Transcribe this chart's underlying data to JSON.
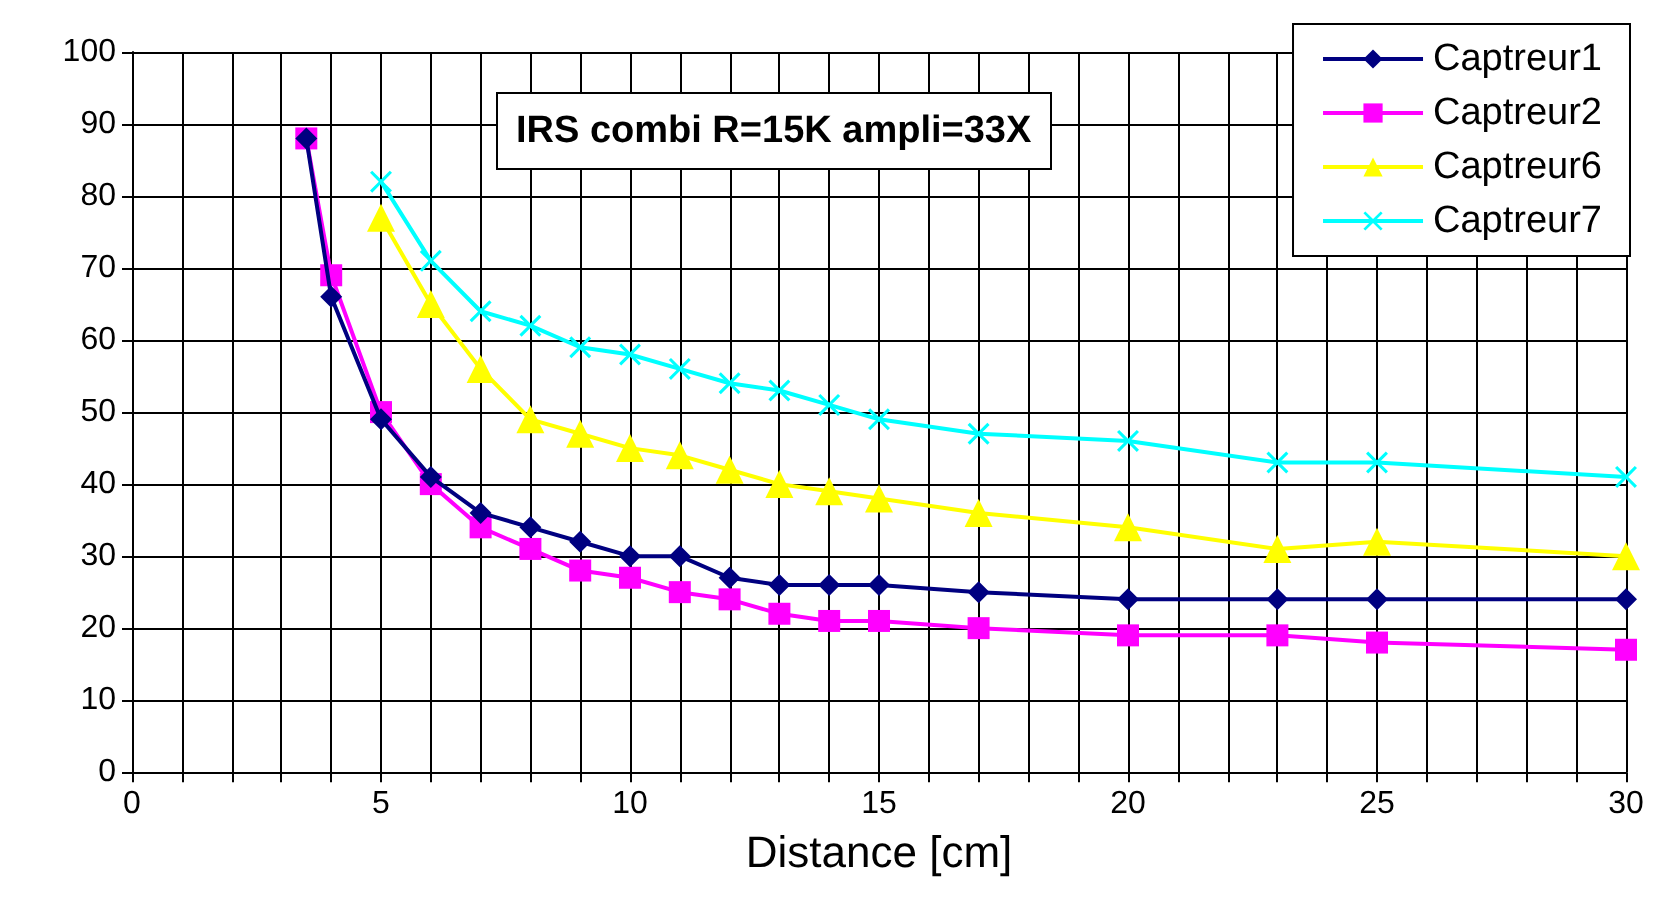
{
  "chart_data": {
    "type": "line",
    "title": "IRS combi R=15K ampli=33X",
    "xlabel": "Distance [cm]",
    "xlim": [
      0,
      30
    ],
    "ylim": [
      0,
      100
    ],
    "xticks": [
      0,
      {
        "value": 1,
        "label": null
      },
      {
        "value": 2,
        "label": null
      },
      {
        "value": 3,
        "label": null
      },
      {
        "value": 4,
        "label": null
      },
      5,
      {
        "value": 6,
        "label": null
      },
      {
        "value": 7,
        "label": null
      },
      {
        "value": 8,
        "label": null
      },
      {
        "value": 9,
        "label": null
      },
      10,
      {
        "value": 11,
        "label": null
      },
      {
        "value": 12,
        "label": null
      },
      {
        "value": 13,
        "label": null
      },
      {
        "value": 14,
        "label": null
      },
      15,
      {
        "value": 16,
        "label": null
      },
      {
        "value": 17,
        "label": null
      },
      {
        "value": 18,
        "label": null
      },
      {
        "value": 19,
        "label": null
      },
      20,
      {
        "value": 21,
        "label": null
      },
      {
        "value": 22,
        "label": null
      },
      {
        "value": 23,
        "label": null
      },
      {
        "value": 24,
        "label": null
      },
      25,
      {
        "value": 26,
        "label": null
      },
      {
        "value": 27,
        "label": null
      },
      {
        "value": 28,
        "label": null
      },
      {
        "value": 29,
        "label": null
      },
      30
    ],
    "yticks": [
      0,
      10,
      20,
      30,
      40,
      50,
      60,
      70,
      80,
      90,
      100
    ],
    "grid": true,
    "legend": "top right",
    "series": [
      {
        "name": "Captreur1",
        "color": "#000080",
        "marker": "diamond",
        "x": [
          3.5,
          4,
          5,
          6,
          7,
          8,
          9,
          10,
          11,
          12,
          13,
          14,
          15,
          17,
          20,
          23,
          25,
          30
        ],
        "values": [
          88,
          66,
          49,
          41,
          36,
          34,
          32,
          30,
          30,
          27,
          26,
          26,
          26,
          25,
          24,
          24,
          24,
          24
        ]
      },
      {
        "name": "Captreur2",
        "color": "#ff00ff",
        "marker": "square",
        "x": [
          3.5,
          4,
          5,
          6,
          7,
          8,
          9,
          10,
          11,
          12,
          13,
          14,
          15,
          17,
          20,
          23,
          25,
          30
        ],
        "values": [
          88,
          69,
          50,
          40,
          34,
          31,
          28,
          27,
          25,
          24,
          22,
          21,
          21,
          20,
          19,
          19,
          18,
          17
        ]
      },
      {
        "name": "Captreur6",
        "color": "#ffff00",
        "marker": "triangle",
        "x": [
          5,
          6,
          7,
          8,
          9,
          10,
          11,
          12,
          13,
          14,
          15,
          17,
          20,
          23,
          25,
          30
        ],
        "values": [
          77,
          65,
          56,
          49,
          47,
          45,
          44,
          42,
          40,
          39,
          38,
          36,
          34,
          31,
          32,
          30
        ]
      },
      {
        "name": "Captreur7",
        "color": "#00ffff",
        "marker": "cross",
        "x": [
          5,
          6,
          7,
          8,
          9,
          10,
          11,
          12,
          13,
          14,
          15,
          17,
          20,
          23,
          25,
          30
        ],
        "values": [
          82,
          71,
          64,
          62,
          59,
          58,
          56,
          54,
          53,
          51,
          49,
          47,
          46,
          43,
          43,
          41
        ]
      }
    ]
  }
}
